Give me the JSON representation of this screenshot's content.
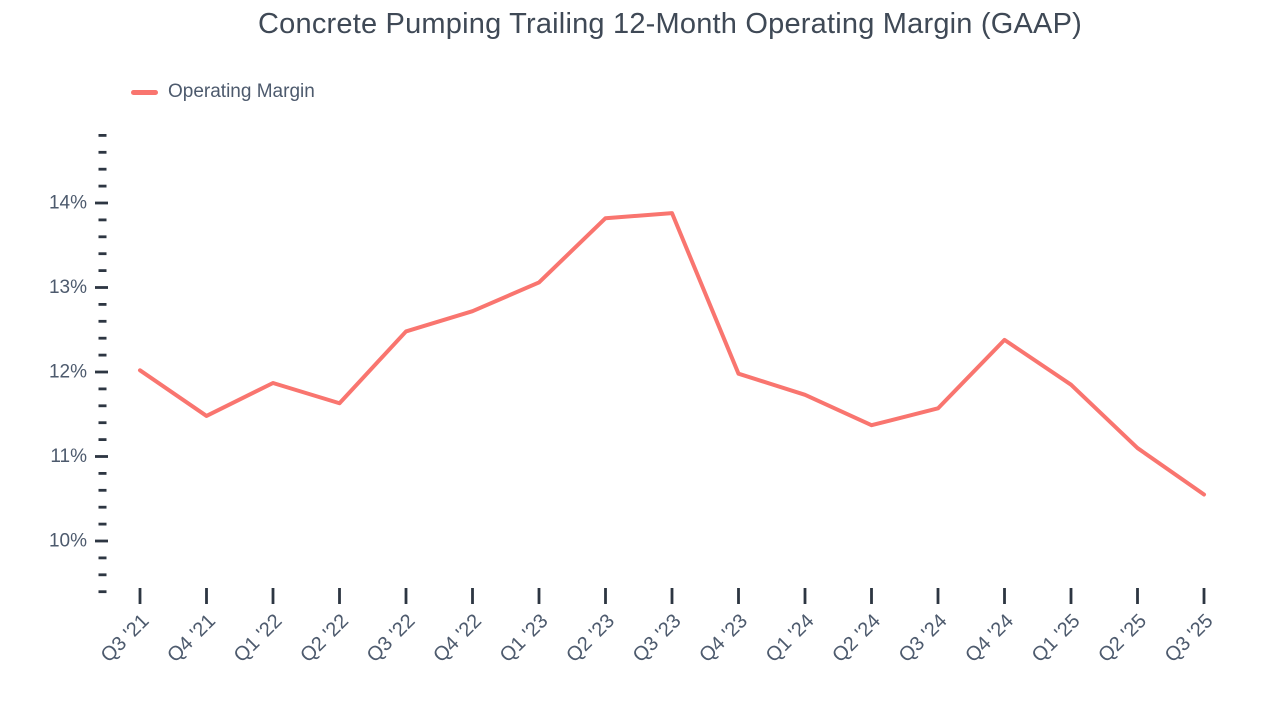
{
  "colors": {
    "background": "#ffffff",
    "line": "#f9756f",
    "tick": "#2d3642",
    "axis_label": "#4d5a6d",
    "title": "#3f4956"
  },
  "legend": {
    "label": "Operating Margin"
  },
  "chart_data": {
    "type": "line",
    "title": "Concrete Pumping Trailing 12-Month Operating Margin (GAAP)",
    "categories": [
      "Q3 '21",
      "Q4 '21",
      "Q1 '22",
      "Q2 '22",
      "Q3 '22",
      "Q4 '22",
      "Q1 '23",
      "Q2 '23",
      "Q3 '23",
      "Q4 '23",
      "Q1 '24",
      "Q2 '24",
      "Q3 '24",
      "Q4 '24",
      "Q1 '25",
      "Q2 '25",
      "Q3 '25"
    ],
    "series": [
      {
        "name": "Operating Margin",
        "color": "#f9756f",
        "values": [
          12.02,
          11.48,
          11.87,
          11.63,
          12.48,
          12.72,
          13.06,
          13.82,
          13.88,
          11.98,
          11.73,
          11.37,
          11.57,
          12.38,
          11.85,
          11.1,
          10.55
        ]
      }
    ],
    "y_axis": {
      "unit": "%",
      "major_ticks": [
        14,
        13,
        12,
        11,
        10
      ],
      "major_tick_labels": [
        "14%",
        "13%",
        "12%",
        "11%",
        "10%"
      ],
      "minor_step": 0.2,
      "range": [
        9.4,
        14.8
      ]
    },
    "x_axis": {
      "label_rotation_deg": -45
    },
    "grid": false,
    "legend_position": "top-left"
  }
}
